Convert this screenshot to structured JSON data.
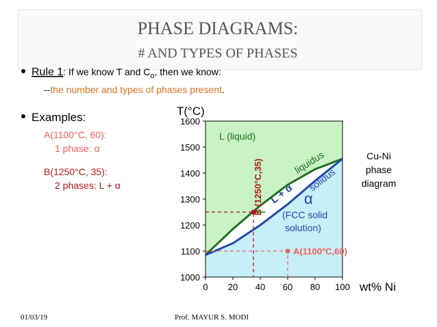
{
  "slide": {
    "title": "PHASE DIAGRAMS:",
    "subtitle": "# AND TYPES OF PHASES",
    "rule": {
      "label": "Rule 1",
      "text": ":  If we know T and C",
      "subscript": "o",
      "tail": ", then we know:"
    },
    "note": {
      "prefix": "--",
      "highlight": "the number and types of phases present",
      "tail": "."
    },
    "examples": {
      "heading": "Examples:",
      "items": [
        {
          "label": "A(1100°C, 60):",
          "detail": "1 phase:  α"
        },
        {
          "label": "B(1250°C, 35):",
          "detail": "2 phases: L + α"
        }
      ]
    },
    "footer": {
      "date": "01/03/19",
      "author": "Prof. MAYUR S. MODI"
    }
  },
  "chart_data": {
    "type": "line",
    "ylabel": "T(°C)",
    "xlabel": "wt% Ni",
    "xlim": [
      0,
      100
    ],
    "ylim": [
      1000,
      1600
    ],
    "xticks": [
      0,
      20,
      40,
      60,
      80,
      100
    ],
    "yticks": [
      1000,
      1100,
      1200,
      1300,
      1400,
      1500,
      1600
    ],
    "x": [
      0,
      20,
      40,
      60,
      80,
      100
    ],
    "series": [
      {
        "name": "liquidus",
        "color": "#1f6e1f",
        "values": [
          1085,
          1185,
          1275,
          1355,
          1415,
          1455
        ]
      },
      {
        "name": "solidus",
        "color": "#2346a8",
        "values": [
          1085,
          1130,
          1200,
          1280,
          1370,
          1455
        ]
      }
    ],
    "region_colors": {
      "liquid": "#c9f3c4",
      "solid": "#c6eff8"
    },
    "points": [
      {
        "label": "A(1100°C,60)",
        "x": 60,
        "y": 1100,
        "color": "#f0605a"
      },
      {
        "label": "B (1250°C,35)",
        "x": 35,
        "y": 1250,
        "color": "#b01818"
      }
    ],
    "annotations": {
      "liquid": "L (liquid)",
      "two_phase": "L + α",
      "alpha": "α",
      "fcc1": "(FCC solid",
      "fcc2": "solution)",
      "caption": [
        "Cu-Ni",
        "phase",
        "diagram"
      ]
    }
  }
}
